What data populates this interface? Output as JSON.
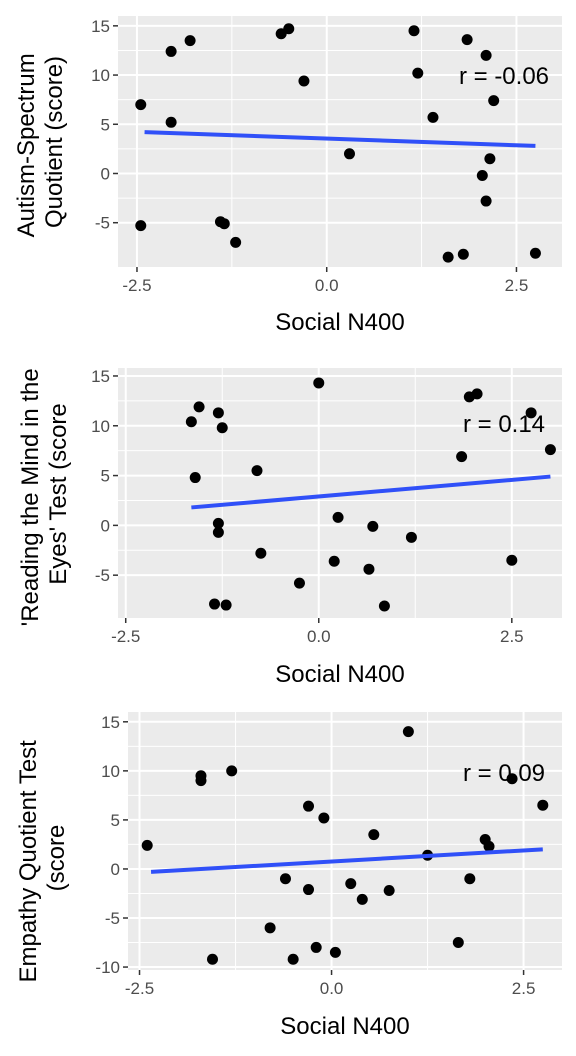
{
  "chart_data": [
    {
      "type": "scatter",
      "xlabel": "Social N400",
      "ylabel": [
        "Autism-Spectrum",
        "Quotient (score)"
      ],
      "annotation": "r =  -0.06",
      "xlim": [
        -2.75,
        3.1
      ],
      "ylim": [
        -9.5,
        16
      ],
      "xticks": [
        -2.5,
        0.0,
        2.5
      ],
      "xtick_labels": [
        "-2.5",
        "0.0",
        "2.5"
      ],
      "yticks": [
        -5,
        0,
        5,
        10,
        15
      ],
      "ytick_labels": [
        "-5",
        "0",
        "5",
        "10",
        "15"
      ],
      "grid": true,
      "points": [
        [
          -2.45,
          7.0
        ],
        [
          -2.45,
          -5.3
        ],
        [
          -2.05,
          12.4
        ],
        [
          -2.05,
          5.2
        ],
        [
          -1.8,
          13.5
        ],
        [
          -1.4,
          -4.9
        ],
        [
          -1.35,
          -5.1
        ],
        [
          -1.2,
          -7.0
        ],
        [
          -0.6,
          14.2
        ],
        [
          -0.5,
          14.7
        ],
        [
          -0.3,
          9.4
        ],
        [
          0.3,
          2.0
        ],
        [
          1.15,
          14.5
        ],
        [
          1.2,
          10.2
        ],
        [
          1.4,
          5.7
        ],
        [
          1.6,
          -8.5
        ],
        [
          1.8,
          -8.2
        ],
        [
          1.85,
          13.6
        ],
        [
          2.05,
          -0.2
        ],
        [
          2.1,
          12.0
        ],
        [
          2.1,
          -2.8
        ],
        [
          2.15,
          1.5
        ],
        [
          2.2,
          7.4
        ],
        [
          2.75,
          -8.1
        ]
      ],
      "fit": {
        "x": [
          -2.4,
          2.75
        ],
        "y": [
          4.2,
          2.8
        ]
      },
      "fit_color": "#3050f8"
    },
    {
      "type": "scatter",
      "xlabel": "Social N400",
      "ylabel": [
        "'Reading the Mind in the",
        "Eyes' Test (score"
      ],
      "annotation": "r =  0.14",
      "xlim": [
        -2.6,
        3.15
      ],
      "ylim": [
        -9.3,
        15.8
      ],
      "xticks": [
        -2.5,
        0.0,
        2.5
      ],
      "xtick_labels": [
        "-2.5",
        "0.0",
        "2.5"
      ],
      "yticks": [
        -5,
        0,
        5,
        10,
        15
      ],
      "ytick_labels": [
        "-5",
        "0",
        "5",
        "10",
        "15"
      ],
      "grid": true,
      "points": [
        [
          -1.65,
          10.4
        ],
        [
          -1.6,
          4.8
        ],
        [
          -1.55,
          11.9
        ],
        [
          -1.3,
          11.3
        ],
        [
          -1.25,
          9.8
        ],
        [
          -1.3,
          0.2
        ],
        [
          -1.3,
          -0.7
        ],
        [
          -1.35,
          -7.9
        ],
        [
          -1.2,
          -8.0
        ],
        [
          -0.8,
          5.5
        ],
        [
          -0.75,
          -2.8
        ],
        [
          0.0,
          14.3
        ],
        [
          -0.25,
          -5.8
        ],
        [
          0.25,
          0.8
        ],
        [
          0.2,
          -3.6
        ],
        [
          0.7,
          -0.1
        ],
        [
          0.65,
          -4.4
        ],
        [
          0.85,
          -8.1
        ],
        [
          1.2,
          -1.2
        ],
        [
          1.85,
          6.9
        ],
        [
          1.95,
          12.9
        ],
        [
          2.05,
          13.2
        ],
        [
          2.5,
          -3.5
        ],
        [
          2.75,
          11.3
        ],
        [
          3.0,
          7.6
        ]
      ],
      "fit": {
        "x": [
          -1.65,
          3.0
        ],
        "y": [
          1.8,
          4.9
        ]
      },
      "fit_color": "#3050f8"
    },
    {
      "type": "scatter",
      "xlabel": "Social N400",
      "ylabel": [
        "Empathy Quotient Test",
        "(score"
      ],
      "annotation": "r =  0.09",
      "xlim": [
        -2.65,
        3.0
      ],
      "ylim": [
        -10.3,
        16
      ],
      "xticks": [
        -2.5,
        0.0,
        2.5
      ],
      "xtick_labels": [
        "-2.5",
        "0.0",
        "2.5"
      ],
      "yticks": [
        -10,
        -5,
        0,
        5,
        10,
        15
      ],
      "ytick_labels": [
        "-10",
        "-5",
        "0",
        "5",
        "10",
        "15"
      ],
      "grid": true,
      "points": [
        [
          -2.4,
          2.4
        ],
        [
          -1.7,
          9.0
        ],
        [
          -1.7,
          9.5
        ],
        [
          -1.3,
          10.0
        ],
        [
          -1.55,
          -9.2
        ],
        [
          -0.8,
          -6.0
        ],
        [
          -0.6,
          -1.0
        ],
        [
          -0.5,
          -9.2
        ],
        [
          -0.3,
          6.4
        ],
        [
          -0.3,
          -2.1
        ],
        [
          -0.2,
          -8.0
        ],
        [
          -0.1,
          5.2
        ],
        [
          0.05,
          -8.5
        ],
        [
          0.25,
          -1.5
        ],
        [
          0.4,
          -3.1
        ],
        [
          0.55,
          3.5
        ],
        [
          0.75,
          -2.2
        ],
        [
          1.0,
          14.0
        ],
        [
          1.25,
          1.4
        ],
        [
          1.65,
          -7.5
        ],
        [
          1.8,
          -1.0
        ],
        [
          2.0,
          3.0
        ],
        [
          2.05,
          2.3
        ],
        [
          2.35,
          9.2
        ],
        [
          2.75,
          6.5
        ]
      ],
      "fit": {
        "x": [
          -2.35,
          2.75
        ],
        "y": [
          -0.3,
          2.0
        ]
      },
      "fit_color": "#3050f8"
    }
  ]
}
